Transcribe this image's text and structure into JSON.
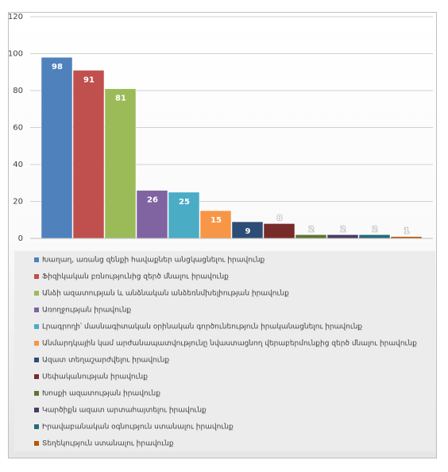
{
  "chart_data": {
    "type": "bar",
    "categories": [
      null
    ],
    "series": [
      {
        "name": "Խաղաղ, առանց զենքի հավաքներ անցկացնելու իրավունք",
        "color": "#4f81bd",
        "values": [
          98
        ]
      },
      {
        "name": "Ֆիզիկական բռնությունից զերծ մնալու իրավունք",
        "color": "#c0504d",
        "values": [
          91
        ]
      },
      {
        "name": "Անձի ազատության և անձնական անձեռնմխելիության իրավունք",
        "color": "#9bbb59",
        "values": [
          81
        ]
      },
      {
        "name": "Առողջության իրավունք",
        "color": "#8064a2",
        "values": [
          26
        ]
      },
      {
        "name": "Լրագրողի՝ մասնագիտական օրինական գործունեություն իրականացնելու իրավունք",
        "color": "#4bacc6",
        "values": [
          25
        ]
      },
      {
        "name": "Անմարդկային կամ արժանապատվությունը նվաստացնող վերաբերմունքից զերծ մնալու իրավունք",
        "color": "#f79646",
        "values": [
          15
        ]
      },
      {
        "name": "Ազատ տեղաշարժվելու իրավունք",
        "color": "#2c4d75",
        "values": [
          9
        ]
      },
      {
        "name": "Սեփականության իրավունք",
        "color": "#772c2a",
        "values": [
          8
        ]
      },
      {
        "name": "Խոսքի ազատության իրավունք",
        "color": "#5f7530",
        "values": [
          2
        ]
      },
      {
        "name": "Կարծիքն ազատ արտահայտելու իրավունք",
        "color": "#4d3b62",
        "values": [
          2
        ]
      },
      {
        "name": "Իրավաբանական օգնություն ստանալու իրավունք",
        "color": "#276a7c",
        "values": [
          2
        ]
      },
      {
        "name": "Տեղեկություն ստանալու իրավունք",
        "color": "#b65708",
        "values": [
          1
        ]
      }
    ],
    "ylim": [
      0,
      120
    ],
    "yticks": [
      0,
      20,
      40,
      60,
      80,
      100,
      120
    ],
    "grid": true,
    "legend": "bottom"
  }
}
